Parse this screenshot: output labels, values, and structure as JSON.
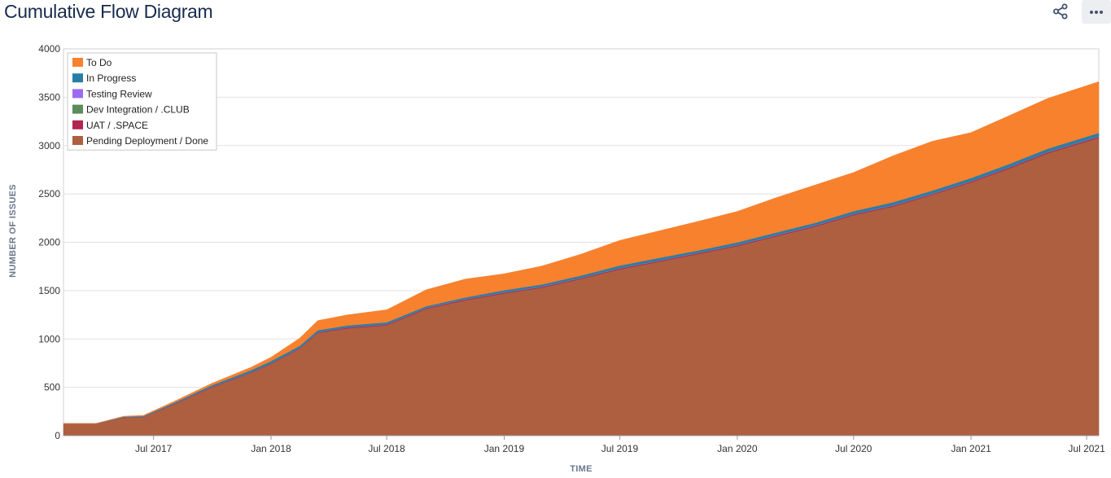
{
  "header": {
    "title": "Cumulative Flow Diagram",
    "share_icon": "share-icon",
    "more_icon": "more-horizontal-icon"
  },
  "chart_data": {
    "type": "area",
    "stacked": true,
    "xlabel": "TIME",
    "ylabel": "NUMBER OF ISSUES",
    "ylim": [
      0,
      4000
    ],
    "xlim": [
      "2017-02-10",
      "2021-07-20"
    ],
    "yticks": [
      0,
      500,
      1000,
      1500,
      2000,
      2500,
      3000,
      3500,
      4000
    ],
    "xticks": [
      {
        "date": "2017-07-01",
        "label": "Jul 2017"
      },
      {
        "date": "2018-01-01",
        "label": "Jan 2018"
      },
      {
        "date": "2018-07-01",
        "label": "Jul 2018"
      },
      {
        "date": "2019-01-01",
        "label": "Jan 2019"
      },
      {
        "date": "2019-07-01",
        "label": "Jul 2019"
      },
      {
        "date": "2020-01-01",
        "label": "Jan 2020"
      },
      {
        "date": "2020-07-01",
        "label": "Jul 2020"
      },
      {
        "date": "2021-01-01",
        "label": "Jan 2021"
      },
      {
        "date": "2021-07-01",
        "label": "Jul 2021"
      }
    ],
    "grid": true,
    "legend_position": "top-left",
    "dates": [
      "2017-02-10",
      "2017-04-01",
      "2017-05-15",
      "2017-06-15",
      "2017-08-01",
      "2017-10-01",
      "2017-12-01",
      "2018-01-01",
      "2018-02-15",
      "2018-03-15",
      "2018-05-01",
      "2018-07-01",
      "2018-09-01",
      "2018-11-01",
      "2019-01-01",
      "2019-03-01",
      "2019-05-01",
      "2019-07-01",
      "2019-09-01",
      "2019-11-01",
      "2020-01-01",
      "2020-03-01",
      "2020-05-01",
      "2020-07-01",
      "2020-09-01",
      "2020-11-01",
      "2021-01-01",
      "2021-03-01",
      "2021-05-01",
      "2021-07-20"
    ],
    "series": [
      {
        "name": "Pending Deployment / Done",
        "color": "#ae5f40",
        "values": [
          125,
          125,
          185,
          190,
          320,
          500,
          650,
          740,
          900,
          1060,
          1110,
          1140,
          1310,
          1400,
          1470,
          1530,
          1620,
          1720,
          1800,
          1880,
          1960,
          2060,
          2160,
          2280,
          2370,
          2490,
          2620,
          2760,
          2920,
          3080
        ]
      },
      {
        "name": "UAT / .SPACE",
        "color": "#b3244f",
        "values": [
          0,
          0,
          2,
          2,
          3,
          4,
          4,
          5,
          5,
          6,
          8,
          8,
          8,
          8,
          8,
          8,
          8,
          8,
          8,
          8,
          8,
          8,
          8,
          8,
          8,
          8,
          8,
          10,
          10,
          10
        ]
      },
      {
        "name": "Dev Integration / .CLUB",
        "color": "#5b8c5a",
        "values": [
          0,
          0,
          1,
          1,
          1,
          2,
          2,
          2,
          2,
          2,
          2,
          2,
          3,
          3,
          3,
          3,
          3,
          3,
          3,
          3,
          3,
          3,
          3,
          3,
          3,
          3,
          3,
          3,
          3,
          3
        ]
      },
      {
        "name": "Testing Review",
        "color": "#9b6cf2",
        "values": [
          0,
          0,
          1,
          1,
          1,
          2,
          2,
          2,
          2,
          2,
          2,
          2,
          3,
          3,
          3,
          3,
          3,
          3,
          3,
          3,
          3,
          3,
          3,
          3,
          3,
          3,
          3,
          3,
          3,
          3
        ]
      },
      {
        "name": "In Progress",
        "color": "#2a7ea6",
        "values": [
          0,
          0,
          6,
          8,
          12,
          15,
          20,
          22,
          20,
          20,
          18,
          20,
          15,
          15,
          20,
          20,
          22,
          25,
          25,
          22,
          25,
          25,
          26,
          28,
          30,
          30,
          30,
          32,
          32,
          35
        ]
      },
      {
        "name": "To Do",
        "color": "#f8812e",
        "values": [
          0,
          0,
          6,
          8,
          14,
          20,
          30,
          40,
          80,
          100,
          110,
          130,
          170,
          190,
          170,
          190,
          220,
          260,
          280,
          300,
          320,
          360,
          390,
          400,
          480,
          510,
          470,
          500,
          520,
          530
        ]
      }
    ],
    "legend_order": [
      "To Do",
      "In Progress",
      "Testing Review",
      "Dev Integration / .CLUB",
      "UAT / .SPACE",
      "Pending Deployment / Done"
    ]
  }
}
